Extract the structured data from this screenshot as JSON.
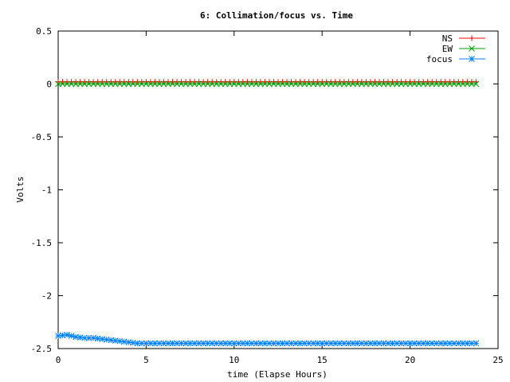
{
  "chart_data": {
    "type": "line",
    "title": "6: Collimation/focus vs. Time",
    "xlabel": "time (Elapse Hours)",
    "ylabel": "Volts",
    "xlim": [
      0,
      25
    ],
    "ylim": [
      -2.5,
      0.5
    ],
    "xticks": [
      "0",
      "5",
      "10",
      "15",
      "20",
      "25"
    ],
    "yticks": [
      "0.5",
      "0",
      "-0.5",
      "-1",
      "-1.5",
      "-2",
      "-2.5"
    ],
    "grid": false,
    "legend_position": "top-right",
    "series": [
      {
        "name": "NS",
        "color": "#ff0000",
        "marker": "plus",
        "x": [
          0,
          2,
          4,
          6,
          8,
          10,
          12,
          14,
          16,
          18,
          20,
          22,
          23.8
        ],
        "y": [
          0.02,
          0.02,
          0.02,
          0.02,
          0.02,
          0.02,
          0.02,
          0.02,
          0.02,
          0.02,
          0.02,
          0.02,
          0.02
        ]
      },
      {
        "name": "EW",
        "color": "#00a000",
        "marker": "cross",
        "x": [
          0,
          2,
          4,
          6,
          8,
          10,
          12,
          14,
          16,
          18,
          20,
          22,
          23.8
        ],
        "y": [
          0.0,
          0.0,
          0.0,
          0.0,
          0.0,
          0.0,
          0.0,
          0.0,
          0.0,
          0.0,
          0.0,
          0.0,
          0.0
        ]
      },
      {
        "name": "focus",
        "color": "#0080ff",
        "marker": "star",
        "x": [
          0,
          0.5,
          1,
          1.5,
          2,
          2.5,
          3,
          3.5,
          4,
          4.5,
          5,
          6,
          8,
          10,
          12,
          14,
          16,
          18,
          20,
          22,
          23.8
        ],
        "y": [
          -2.38,
          -2.37,
          -2.39,
          -2.4,
          -2.4,
          -2.41,
          -2.42,
          -2.43,
          -2.44,
          -2.45,
          -2.45,
          -2.45,
          -2.45,
          -2.45,
          -2.45,
          -2.45,
          -2.45,
          -2.45,
          -2.45,
          -2.45,
          -2.45
        ]
      }
    ]
  }
}
